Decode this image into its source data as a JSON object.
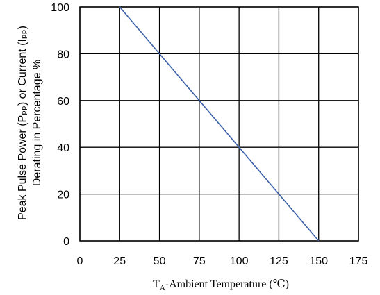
{
  "chart_data": {
    "type": "line",
    "title": "",
    "ylabel_line1": "Peak Pulse Power (Pₚₚ) or Current (Iₚₚ)",
    "ylabel_line2": "Derating in Percentage %",
    "xlabel_main": "T",
    "xlabel_sub": "A",
    "xlabel_rest": "-Ambient Temperature (℃)",
    "xlim": [
      0,
      175
    ],
    "ylim": [
      0,
      100
    ],
    "x_ticks": [
      0,
      25,
      50,
      75,
      100,
      125,
      150,
      175
    ],
    "y_ticks": [
      0,
      20,
      40,
      60,
      80,
      100
    ],
    "grid": true,
    "series": [
      {
        "x": [
          25,
          150
        ],
        "y": [
          100,
          0
        ],
        "color": "#3a5fa8"
      }
    ]
  }
}
